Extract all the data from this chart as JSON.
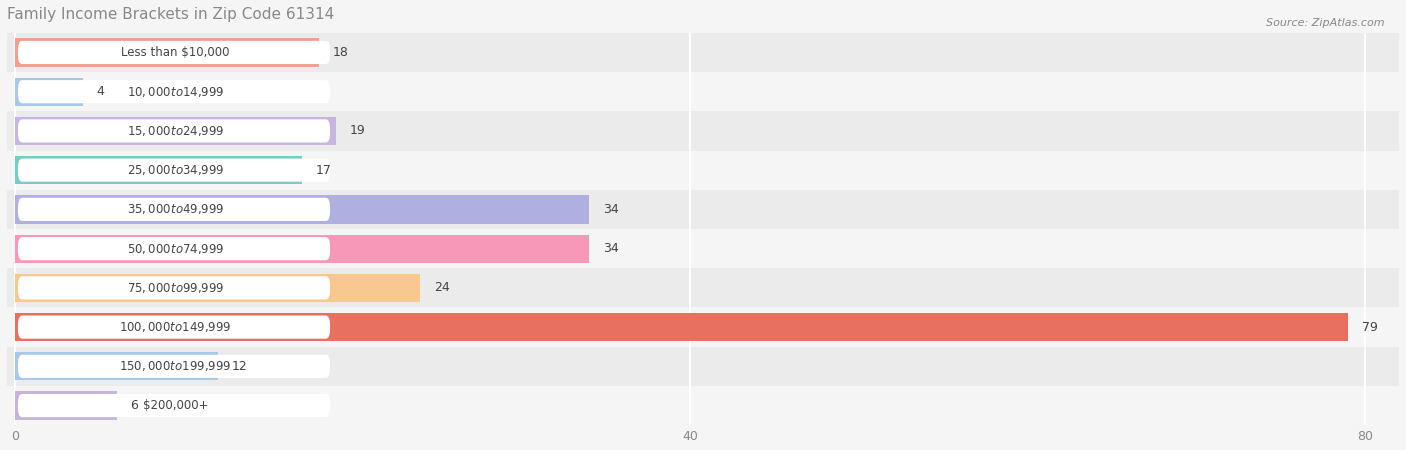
{
  "title": "Family Income Brackets in Zip Code 61314",
  "source": "Source: ZipAtlas.com",
  "categories": [
    "Less than $10,000",
    "$10,000 to $14,999",
    "$15,000 to $24,999",
    "$25,000 to $34,999",
    "$35,000 to $49,999",
    "$50,000 to $74,999",
    "$75,000 to $99,999",
    "$100,000 to $149,999",
    "$150,000 to $199,999",
    "$200,000+"
  ],
  "values": [
    18,
    4,
    19,
    17,
    34,
    34,
    24,
    79,
    12,
    6
  ],
  "bar_colors": [
    "#f0a090",
    "#a8c8e8",
    "#c8b4e0",
    "#78ccc8",
    "#b0b0e0",
    "#f898b8",
    "#f8c890",
    "#e87060",
    "#a8c8e8",
    "#c8b4d8"
  ],
  "row_colors": [
    "#ebebeb",
    "#f5f5f5"
  ],
  "background_color": "#f5f5f5",
  "xlim": [
    -0.5,
    82
  ],
  "xticks": [
    0,
    40,
    80
  ],
  "title_fontsize": 11,
  "label_fontsize": 8.5,
  "value_fontsize": 9
}
